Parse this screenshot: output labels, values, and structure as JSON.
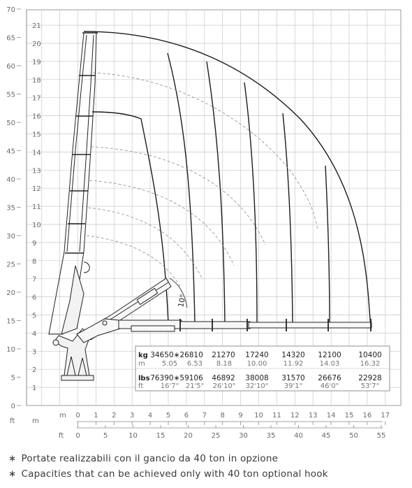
{
  "axes": {
    "left_outer_unit": "ft",
    "left_inner_unit": "m",
    "bottom_m_unit": "m",
    "bottom_ft_unit": "ft",
    "y_ft_ticks": [
      0,
      5,
      10,
      15,
      20,
      25,
      30,
      35,
      40,
      45,
      50,
      55,
      60,
      65,
      70
    ],
    "y_m_ticks": [
      1,
      2,
      3,
      4,
      5,
      6,
      7,
      8,
      9,
      10,
      11,
      12,
      13,
      14,
      15,
      16,
      17,
      18,
      19,
      20,
      21
    ],
    "x_m_ticks": [
      0,
      1,
      2,
      3,
      4,
      5,
      6,
      7,
      8,
      9,
      10,
      11,
      12,
      13,
      14,
      15,
      16,
      17
    ],
    "x_ft_ticks": [
      0,
      5,
      10,
      15,
      20,
      25,
      30,
      35,
      40,
      45,
      50,
      55
    ]
  },
  "angle_label": "10°",
  "table": {
    "kg_label": "kg",
    "m_label": "m",
    "lbs_label": "lbs",
    "ft_label": "ft",
    "kg": [
      "34650∗26810",
      "21270",
      "17240",
      "14320",
      "12100",
      "10400"
    ],
    "m": [
      "5.05",
      "6.53",
      "8.18",
      "10.00",
      "11.92",
      "14.03",
      "16.32"
    ],
    "lbs": [
      "76390∗59106",
      "46892",
      "38008",
      "31570",
      "26676",
      "22928"
    ],
    "ft": [
      "16'7\"",
      "21'5\"",
      "26'10\"",
      "32'10\"",
      "39'1\"",
      "46'0\"",
      "53'7\""
    ]
  },
  "footnotes": [
    {
      "star": "∗",
      "text": "Portate realizzabili con il gancio da 40 ton in opzione"
    },
    {
      "star": "∗",
      "text": "Capacities that can be achieved only with 40 ton optional hook"
    }
  ]
}
